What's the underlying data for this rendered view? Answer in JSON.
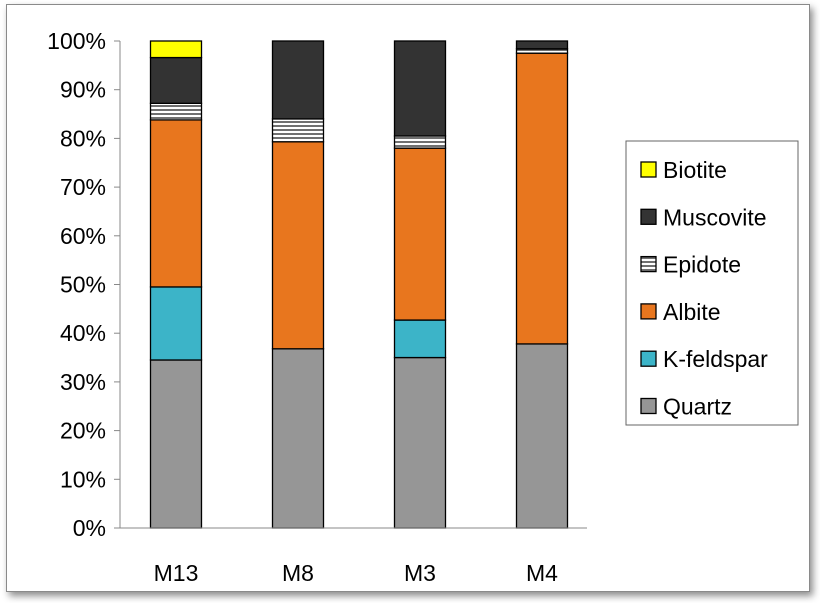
{
  "chart_data": {
    "type": "bar",
    "stacked": true,
    "percent": true,
    "categories": [
      "M13",
      "M8",
      "M3",
      "M4"
    ],
    "yticks": [
      "0%",
      "10%",
      "20%",
      "30%",
      "40%",
      "50%",
      "60%",
      "70%",
      "80%",
      "90%",
      "100%"
    ],
    "ylim": [
      0,
      100
    ],
    "grid": false,
    "legend_position": "right",
    "series": [
      {
        "name": "Quartz",
        "color": "#969696",
        "pattern": "solid",
        "values": [
          34.5,
          36.8,
          35.0,
          37.8
        ]
      },
      {
        "name": "K-feldspar",
        "color": "#3cb4c8",
        "pattern": "solid",
        "values": [
          15.0,
          0.0,
          7.7,
          0.0
        ]
      },
      {
        "name": "Albite",
        "color": "#e8761e",
        "pattern": "solid",
        "values": [
          34.3,
          42.5,
          35.3,
          59.7
        ]
      },
      {
        "name": "Epidote",
        "color": "#ffffff",
        "pattern": "horizontal",
        "values": [
          3.4,
          4.7,
          2.5,
          0.9
        ]
      },
      {
        "name": "Muscovite",
        "color": "#333333",
        "pattern": "solid",
        "values": [
          9.4,
          16.0,
          19.5,
          1.6
        ]
      },
      {
        "name": "Biotite",
        "color": "#ffff00",
        "pattern": "solid",
        "values": [
          3.4,
          0.0,
          0.0,
          0.0
        ]
      }
    ],
    "legend_order": [
      "Biotite",
      "Muscovite",
      "Epidote",
      "Albite",
      "K-feldspar",
      "Quartz"
    ]
  }
}
